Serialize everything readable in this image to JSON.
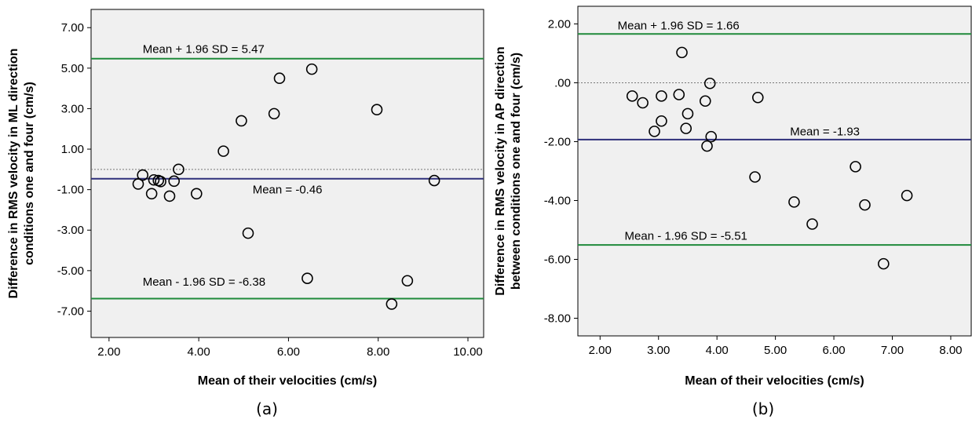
{
  "colors": {
    "plot_bg": "#f0f0f0",
    "limit_line": "#1f8a3b",
    "mean_line": "#2e2f7a",
    "zero_line": "#777777",
    "marker": "#000000"
  },
  "chart_data": [
    {
      "type": "scatter",
      "panel_label": "(a)",
      "xlabel": "Mean of their velocities (cm/s)",
      "ylabel_lines": [
        "Difference in RMS velocity in ML direction",
        "conditions one and four (cm/s)"
      ],
      "xlim": [
        1.6,
        10.35
      ],
      "ylim": [
        -8.3,
        7.9
      ],
      "xticks": [
        {
          "v": 2,
          "label": "2.00"
        },
        {
          "v": 4,
          "label": "4.00"
        },
        {
          "v": 6,
          "label": "6.00"
        },
        {
          "v": 8,
          "label": "8.00"
        },
        {
          "v": 10,
          "label": "10.00"
        }
      ],
      "yticks": [
        {
          "v": 7,
          "label": "7.00"
        },
        {
          "v": 5,
          "label": "5.00"
        },
        {
          "v": 3,
          "label": "3.00"
        },
        {
          "v": 1,
          "label": "1.00"
        },
        {
          "v": -1,
          "label": "-1.00"
        },
        {
          "v": -3,
          "label": "-3.00"
        },
        {
          "v": -5,
          "label": "-5.00"
        },
        {
          "v": -7,
          "label": "-7.00"
        }
      ],
      "grid": false,
      "zero_line": 0,
      "ref_lines": [
        {
          "kind": "limit",
          "y": 5.47,
          "label": "Mean + 1.96 SD = 5.47",
          "label_x": 2.75,
          "label_y": 5.95
        },
        {
          "kind": "mean",
          "y": -0.46,
          "label": "Mean = -0.46",
          "label_x": 5.2,
          "label_y": -1.0
        },
        {
          "kind": "limit",
          "y": -6.38,
          "label": "Mean - 1.96 SD = -6.38",
          "label_x": 2.75,
          "label_y": -5.55
        }
      ],
      "points": [
        {
          "x": 2.65,
          "y": -0.72
        },
        {
          "x": 2.75,
          "y": -0.28
        },
        {
          "x": 2.95,
          "y": -1.2
        },
        {
          "x": 3.0,
          "y": -0.52
        },
        {
          "x": 3.1,
          "y": -0.55
        },
        {
          "x": 3.15,
          "y": -0.6
        },
        {
          "x": 3.35,
          "y": -1.32
        },
        {
          "x": 3.45,
          "y": -0.58
        },
        {
          "x": 3.55,
          "y": 0.0
        },
        {
          "x": 3.95,
          "y": -1.2
        },
        {
          "x": 4.55,
          "y": 0.9
        },
        {
          "x": 4.95,
          "y": 2.4
        },
        {
          "x": 5.1,
          "y": -3.15
        },
        {
          "x": 5.68,
          "y": 2.75
        },
        {
          "x": 5.8,
          "y": 4.5
        },
        {
          "x": 6.42,
          "y": -5.38
        },
        {
          "x": 6.52,
          "y": 4.95
        },
        {
          "x": 7.97,
          "y": 2.95
        },
        {
          "x": 8.3,
          "y": -6.65
        },
        {
          "x": 8.65,
          "y": -5.5
        },
        {
          "x": 9.25,
          "y": -0.55
        }
      ]
    },
    {
      "type": "scatter",
      "panel_label": "(b)",
      "xlabel": "Mean of their velocities (cm/s)",
      "ylabel_lines": [
        "Difference in RMS velocity in AP direction",
        "between conditions one and four (cm/s)"
      ],
      "xlim": [
        1.62,
        8.35
      ],
      "ylim": [
        -8.6,
        2.6
      ],
      "xticks": [
        {
          "v": 2,
          "label": "2.00"
        },
        {
          "v": 3,
          "label": "3.00"
        },
        {
          "v": 4,
          "label": "4.00"
        },
        {
          "v": 5,
          "label": "5.00"
        },
        {
          "v": 6,
          "label": "6.00"
        },
        {
          "v": 7,
          "label": "7.00"
        },
        {
          "v": 8,
          "label": "8.00"
        }
      ],
      "yticks": [
        {
          "v": 2,
          "label": "2.00"
        },
        {
          "v": 0,
          "label": ".00"
        },
        {
          "v": -2,
          "label": "-2.00"
        },
        {
          "v": -4,
          "label": "-4.00"
        },
        {
          "v": -6,
          "label": "-6.00"
        },
        {
          "v": -8,
          "label": "-8.00"
        }
      ],
      "grid": false,
      "zero_line": 0,
      "ref_lines": [
        {
          "kind": "limit",
          "y": 1.66,
          "label": "Mean + 1.96 SD = 1.66",
          "label_x": 2.3,
          "label_y": 1.95
        },
        {
          "kind": "mean",
          "y": -1.93,
          "label": "Mean = -1.93",
          "label_x": 5.25,
          "label_y": -1.65
        },
        {
          "kind": "limit",
          "y": -5.51,
          "label": "Mean - 1.96 SD = -5.51",
          "label_x": 2.42,
          "label_y": -5.2
        }
      ],
      "points": [
        {
          "x": 2.55,
          "y": -0.45
        },
        {
          "x": 2.73,
          "y": -0.68
        },
        {
          "x": 2.93,
          "y": -1.65
        },
        {
          "x": 3.05,
          "y": -0.45
        },
        {
          "x": 3.05,
          "y": -1.3
        },
        {
          "x": 3.35,
          "y": -0.4
        },
        {
          "x": 3.4,
          "y": 1.03
        },
        {
          "x": 3.47,
          "y": -1.55
        },
        {
          "x": 3.5,
          "y": -1.05
        },
        {
          "x": 3.8,
          "y": -0.62
        },
        {
          "x": 3.83,
          "y": -2.15
        },
        {
          "x": 3.88,
          "y": -0.02
        },
        {
          "x": 3.9,
          "y": -1.83
        },
        {
          "x": 4.65,
          "y": -3.2
        },
        {
          "x": 4.7,
          "y": -0.5
        },
        {
          "x": 5.32,
          "y": -4.05
        },
        {
          "x": 5.63,
          "y": -4.8
        },
        {
          "x": 6.37,
          "y": -2.85
        },
        {
          "x": 6.53,
          "y": -4.15
        },
        {
          "x": 6.85,
          "y": -6.15
        },
        {
          "x": 7.25,
          "y": -3.83
        }
      ]
    }
  ]
}
